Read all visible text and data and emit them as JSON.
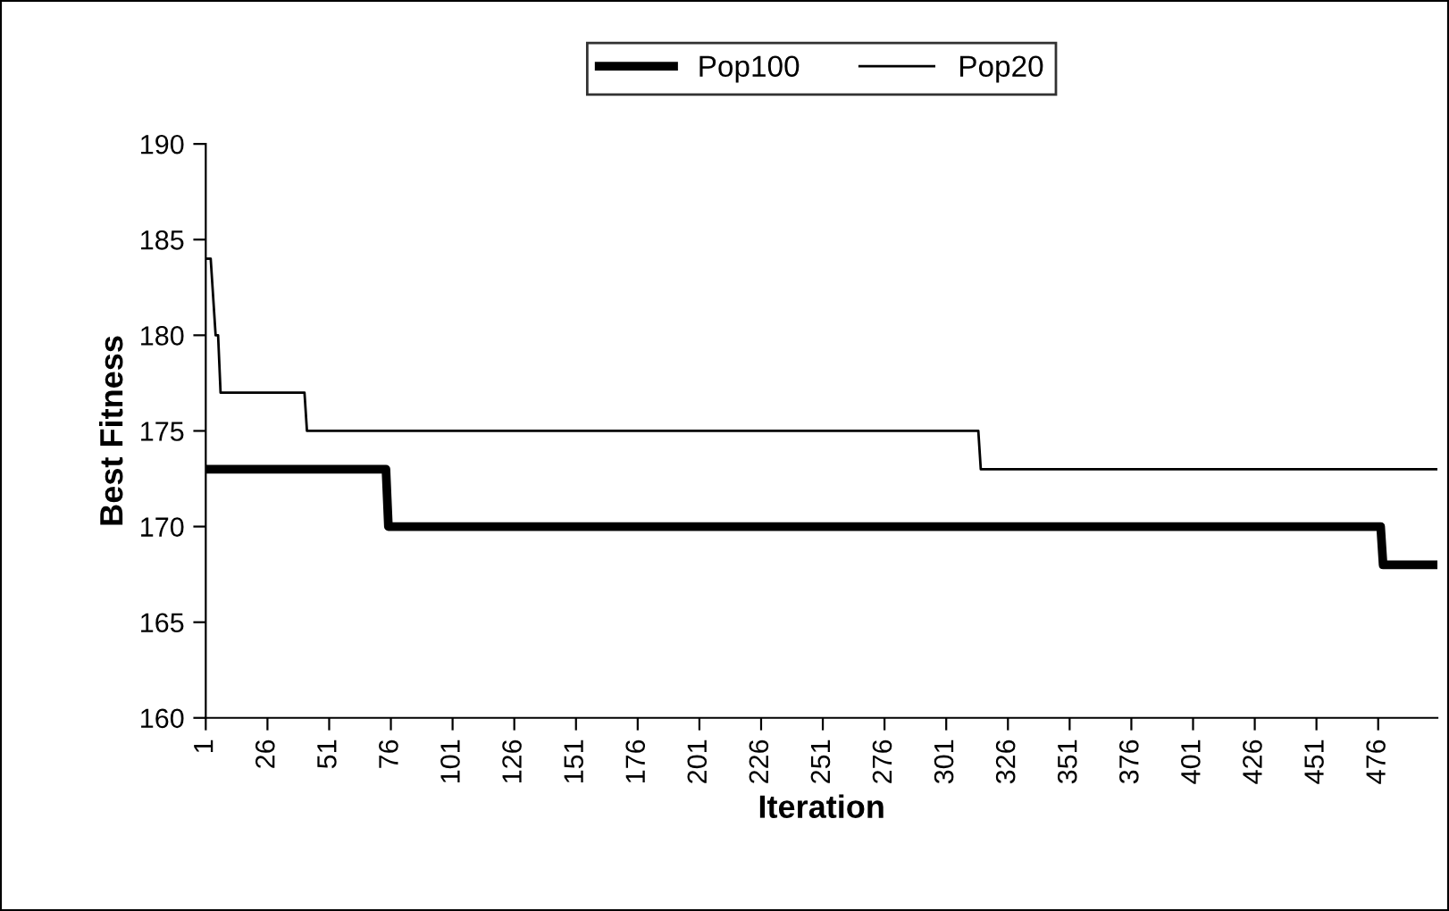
{
  "chart_data": {
    "type": "line",
    "xlabel": "Iteration",
    "ylabel": "Best Fitness",
    "series": [
      {
        "name": "Pop100",
        "color": "#000000",
        "x": [
          1,
          74,
          75,
          477,
          478,
          500
        ],
        "values": [
          173,
          173,
          170,
          170,
          168,
          168
        ]
      },
      {
        "name": "Pop20",
        "color": "#000000",
        "x": [
          1,
          3,
          5,
          6,
          7,
          41,
          42,
          314,
          315,
          500
        ],
        "values": [
          184,
          184,
          180,
          180,
          177,
          177,
          175,
          175,
          173,
          173
        ]
      }
    ],
    "xlim": [
      1,
      500
    ],
    "xticks": [
      1,
      26,
      51,
      76,
      101,
      126,
      151,
      176,
      201,
      226,
      251,
      276,
      301,
      326,
      351,
      376,
      401,
      426,
      451,
      476
    ],
    "ylim": [
      160,
      190
    ],
    "yticks": [
      160,
      165,
      170,
      175,
      180,
      185,
      190
    ],
    "grid": false,
    "legend": "top",
    "marker": "none",
    "line_style": "solid"
  }
}
